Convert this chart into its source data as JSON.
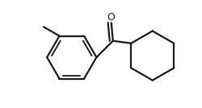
{
  "bg_color": "#ffffff",
  "line_color": "#1a1a1a",
  "line_width": 1.6,
  "figsize": [
    2.5,
    1.34
  ],
  "dpi": 100,
  "xlim": [
    -1.0,
    1.15
  ],
  "ylim": [
    -0.65,
    0.65
  ]
}
